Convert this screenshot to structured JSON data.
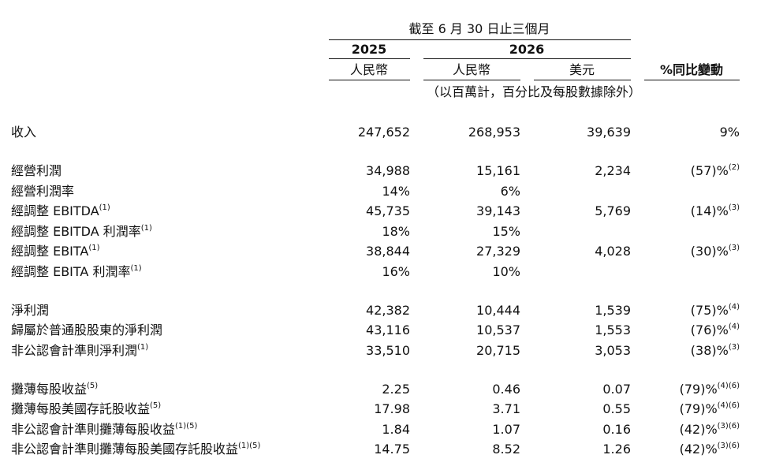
{
  "header": {
    "period": "截至 6 月 30 日止三個月",
    "years": [
      "2025",
      "2026"
    ],
    "currencies": [
      "人民幣",
      "人民幣",
      "美元"
    ],
    "change": "%同比變動",
    "unit_note": "（以百萬計，百分比及每股數據除外）"
  },
  "sections": [
    [
      {
        "label": "收入",
        "cells": [
          "247,652",
          "268,953",
          "39,639"
        ],
        "change": "9%"
      }
    ],
    [
      {
        "label": "經營利潤",
        "cells": [
          "34,988",
          "15,161",
          "2,234"
        ],
        "change": "(57)%",
        "change_note": "(2)"
      },
      {
        "label": "經營利潤率",
        "cells": [
          "14%",
          "6%",
          null
        ]
      },
      {
        "label": "經調整 EBITDA",
        "label_note": "(1)",
        "cells": [
          "45,735",
          "39,143",
          "5,769"
        ],
        "change": "(14)%",
        "change_note": "(3)"
      },
      {
        "label": "經調整 EBITDA 利潤率",
        "label_note": "(1)",
        "cells": [
          "18%",
          "15%",
          null
        ]
      },
      {
        "label": "經調整 EBITA",
        "label_note": "(1)",
        "cells": [
          "38,844",
          "27,329",
          "4,028"
        ],
        "change": "(30)%",
        "change_note": "(3)"
      },
      {
        "label": "經調整 EBITA 利潤率",
        "label_note": "(1)",
        "cells": [
          "16%",
          "10%",
          null
        ]
      }
    ],
    [
      {
        "label": "淨利潤",
        "cells": [
          "42,382",
          "10,444",
          "1,539"
        ],
        "change": "(75)%",
        "change_note": "(4)"
      },
      {
        "label": "歸屬於普通股股東的淨利潤",
        "cells": [
          "43,116",
          "10,537",
          "1,553"
        ],
        "change": "(76)%",
        "change_note": "(4)"
      },
      {
        "label": "非公認會計準則淨利潤",
        "label_note": "(1)",
        "cells": [
          "33,510",
          "20,715",
          "3,053"
        ],
        "change": "(38)%",
        "change_note": "(3)"
      }
    ],
    [
      {
        "label": "攤薄每股收益",
        "label_note": "(5)",
        "cells": [
          "2.25",
          "0.46",
          "0.07"
        ],
        "change": "(79)%",
        "change_note": "(4)(6)"
      },
      {
        "label": "攤薄每股美國存託股收益",
        "label_note": "(5)",
        "cells": [
          "17.98",
          "3.71",
          "0.55"
        ],
        "change": "(79)%",
        "change_note": "(4)(6)"
      },
      {
        "label": "非公認會計準則攤薄每股收益",
        "label_note": "(1)(5)",
        "cells": [
          "1.84",
          "1.07",
          "0.16"
        ],
        "change": "(42)%",
        "change_note": "(3)(6)"
      },
      {
        "label": "非公認會計準則攤薄每股美國存託股收益",
        "label_note": "(1)(5)",
        "cells": [
          "14.75",
          "8.52",
          "1.26"
        ],
        "change": "(42)%",
        "change_note": "(3)(6)"
      }
    ]
  ]
}
